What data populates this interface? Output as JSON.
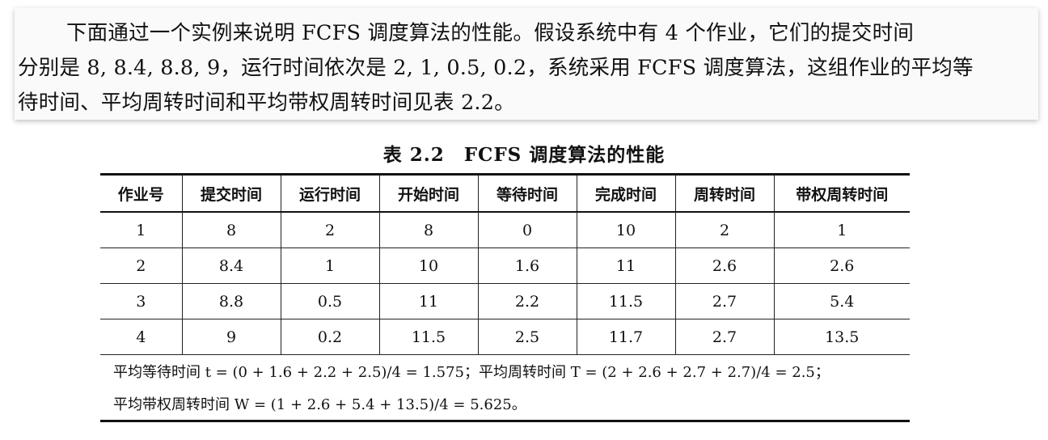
{
  "paragraph": {
    "lines": [
      "下面通过一个实例来说明 FCFS 调度算法的性能。假设系统中有 4 个作业，它们的提交时间",
      "分别是 8, 8.4, 8.8, 9，运行时间依次是 2, 1, 0.5, 0.2，系统采用 FCFS 调度算法，这组作业的平均等",
      "待时间、平均周转时间和平均带权周转时间见表 2.2。"
    ]
  },
  "table": {
    "title": "表 2.2　FCFS 调度算法的性能",
    "headers": [
      "作业号",
      "提交时间",
      "运行时间",
      "开始时间",
      "等待时间",
      "完成时间",
      "周转时间",
      "带权周转时间"
    ],
    "rows": [
      [
        "1",
        "8",
        "2",
        "8",
        "0",
        "10",
        "2",
        "1"
      ],
      [
        "2",
        "8.4",
        "1",
        "10",
        "1.6",
        "11",
        "2.6",
        "2.6"
      ],
      [
        "3",
        "8.8",
        "0.5",
        "11",
        "2.2",
        "11.5",
        "2.7",
        "5.4"
      ],
      [
        "4",
        "9",
        "0.2",
        "11.5",
        "2.5",
        "11.7",
        "2.7",
        "13.5"
      ]
    ]
  },
  "summary": {
    "line1": "平均等待时间 t = (0 + 1.6 + 2.2 + 2.5)/4 = 1.575；平均周转时间 T = (2 + 2.6 + 2.7 + 2.7)/4 = 2.5；",
    "line2": "平均带权周转时间 W = (1 + 2.6 + 5.4 + 13.5)/4 = 5.625。"
  }
}
